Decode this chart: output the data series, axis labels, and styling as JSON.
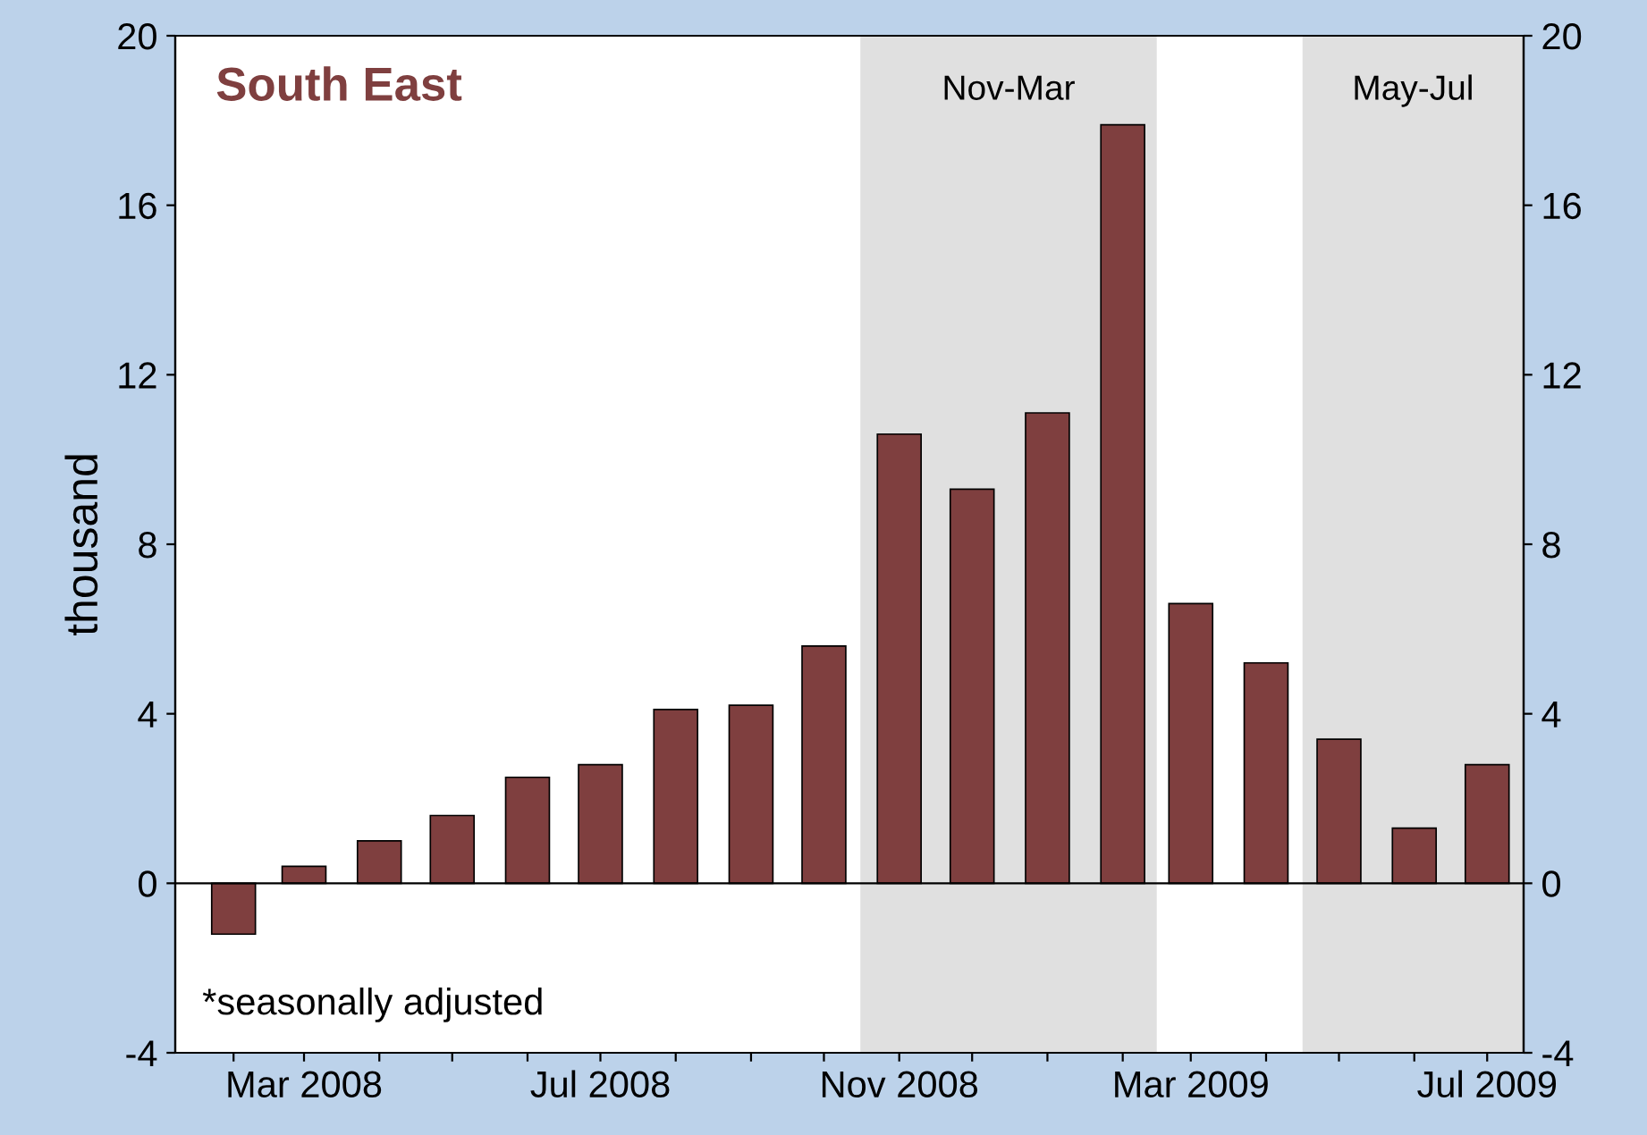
{
  "chart_data": {
    "type": "bar",
    "title": "South East",
    "ylabel": "thousand",
    "x": [
      "2008-02",
      "2008-03",
      "2008-04",
      "2008-05",
      "2008-06",
      "2008-07",
      "2008-08",
      "2008-09",
      "2008-10",
      "2008-11",
      "2008-12",
      "2009-01",
      "2009-02",
      "2009-03",
      "2009-04",
      "2009-05",
      "2009-06",
      "2009-07"
    ],
    "series": [
      {
        "color": "#7f3f3f",
        "values": [
          -1.2,
          0.4,
          1.0,
          1.6,
          2.5,
          2.8,
          4.1,
          4.2,
          5.6,
          10.6,
          9.3,
          11.1,
          17.9,
          6.6,
          5.2,
          3.4,
          1.3,
          2.8
        ]
      }
    ],
    "xlim": [
      "2008-01-08",
      "2009-07-16"
    ],
    "xticks": [
      {
        "value": "2008-02",
        "label": null
      },
      {
        "value": "2008-03",
        "label": "Mar 2008"
      },
      {
        "value": "2008-04",
        "label": null
      },
      {
        "value": "2008-05",
        "label": null
      },
      {
        "value": "2008-06",
        "label": null
      },
      {
        "value": "2008-07",
        "label": "Jul 2008"
      },
      {
        "value": "2008-08",
        "label": null
      },
      {
        "value": "2008-09",
        "label": null
      },
      {
        "value": "2008-10",
        "label": null
      },
      {
        "value": "2008-11",
        "label": "Nov 2008"
      },
      {
        "value": "2008-12",
        "label": null
      },
      {
        "value": "2009-01",
        "label": null
      },
      {
        "value": "2009-02",
        "label": null
      },
      {
        "value": "2009-03",
        "label": "Mar 2009"
      },
      {
        "value": "2009-04",
        "label": null
      },
      {
        "value": "2009-05",
        "label": null
      },
      {
        "value": "2009-06",
        "label": null
      },
      {
        "value": "2009-07",
        "label": "Jul 2009"
      }
    ],
    "ylim": [
      -4,
      20
    ],
    "yticks": [
      -4,
      0,
      4,
      8,
      12,
      16,
      20
    ],
    "y2lim": [
      -4,
      20
    ],
    "y2ticks": [
      -4,
      0,
      4,
      8,
      12,
      16,
      20
    ],
    "bands": [
      {
        "axis": "x",
        "from": "2008-10-16",
        "to": "2009-02-15",
        "label": "Nov-Mar",
        "color": "#e0e0e0"
      },
      {
        "axis": "x",
        "from": "2009-04-16",
        "to": "2009-07-16",
        "label": "May-Jul",
        "color": "#e0e0e0"
      }
    ],
    "ref_lines": [
      {
        "axis": "y",
        "value": 0,
        "color": "#000000"
      }
    ],
    "annotations": [
      "*seasonally adjusted"
    ],
    "grid": false,
    "legend": false
  }
}
